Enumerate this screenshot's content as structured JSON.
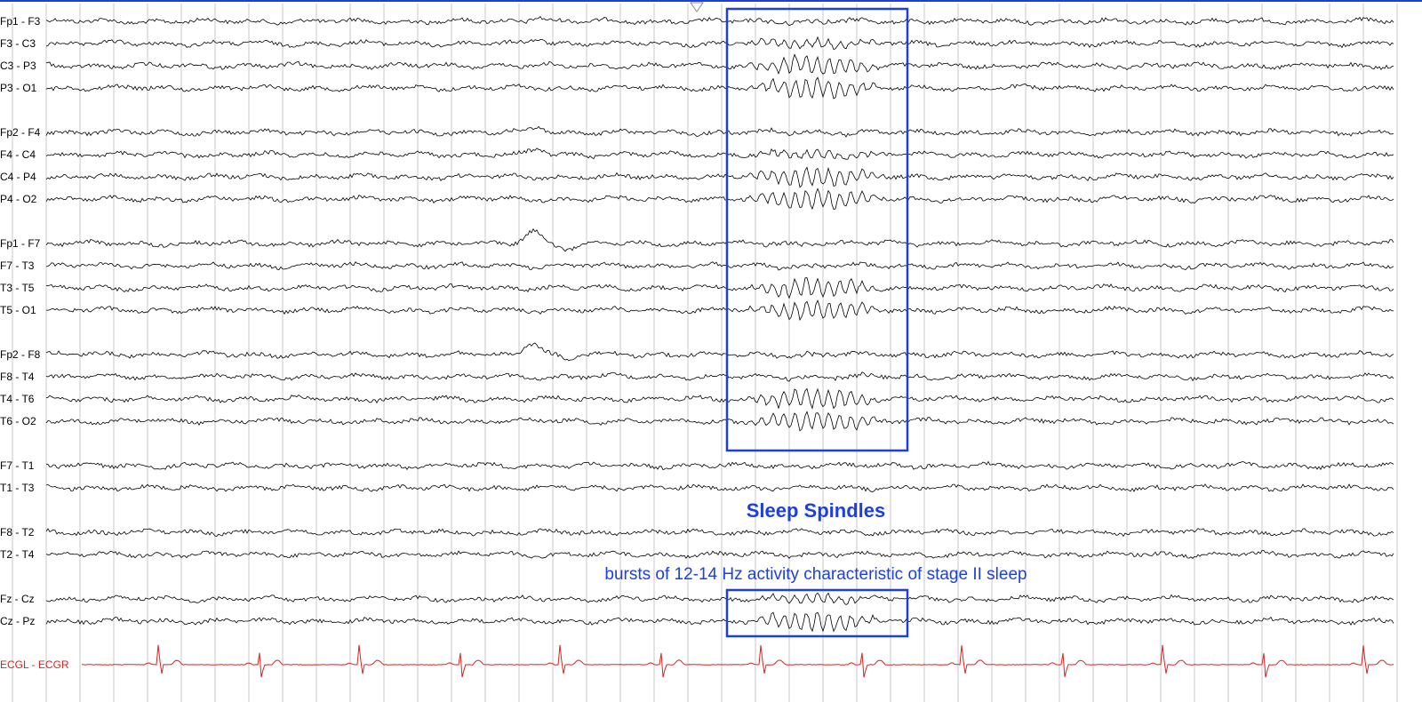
{
  "chart_data": {
    "type": "line",
    "description_free": true,
    "channels": [
      {
        "name": "Fp1 - F3",
        "group": 1,
        "spindle": "weak"
      },
      {
        "name": "F3 - C3",
        "group": 1,
        "spindle": "medium"
      },
      {
        "name": "C3 - P3",
        "group": 1,
        "spindle": "strong"
      },
      {
        "name": "P3 - O1",
        "group": 1,
        "spindle": "strong"
      },
      {
        "name": "Fp2 - F4",
        "group": 2,
        "spindle": "weak"
      },
      {
        "name": "F4 - C4",
        "group": 2,
        "spindle": "medium"
      },
      {
        "name": "C4 - P4",
        "group": 2,
        "spindle": "strong"
      },
      {
        "name": "P4 - O2",
        "group": 2,
        "spindle": "strong"
      },
      {
        "name": "Fp1 - F7",
        "group": 3,
        "spindle": "weak"
      },
      {
        "name": "F7 - T3",
        "group": 3,
        "spindle": "weak"
      },
      {
        "name": "T3 - T5",
        "group": 3,
        "spindle": "strong"
      },
      {
        "name": "T5 - O1",
        "group": 3,
        "spindle": "strong"
      },
      {
        "name": "Fp2 - F8",
        "group": 4,
        "spindle": "weak"
      },
      {
        "name": "F8 - T4",
        "group": 4,
        "spindle": "weak"
      },
      {
        "name": "T4 - T6",
        "group": 4,
        "spindle": "strong"
      },
      {
        "name": "T6 - O2",
        "group": 4,
        "spindle": "strong"
      },
      {
        "name": "F7 - T1",
        "group": 5,
        "spindle": "none"
      },
      {
        "name": "T1 - T3",
        "group": 5,
        "spindle": "none"
      },
      {
        "name": "F8 - T2",
        "group": 6,
        "spindle": "none"
      },
      {
        "name": "T2 - T4",
        "group": 6,
        "spindle": "none"
      },
      {
        "name": "Fz - Cz",
        "group": 7,
        "spindle": "medium"
      },
      {
        "name": "Cz - Pz",
        "group": 7,
        "spindle": "strong"
      },
      {
        "name": "ECGL - ECGR",
        "group": 8,
        "spindle": "none",
        "ecg": true
      }
    ],
    "annotation_title": "Sleep Spindles",
    "annotation_text": "bursts of 12-14 Hz activity characteristic of stage II sleep",
    "colors": {
      "trace": "#000000",
      "ecg": "#e0201e",
      "annotation": "#1c3fe0",
      "gridline": "#c8c8c8",
      "top_bar": "#1c3fe0"
    }
  }
}
